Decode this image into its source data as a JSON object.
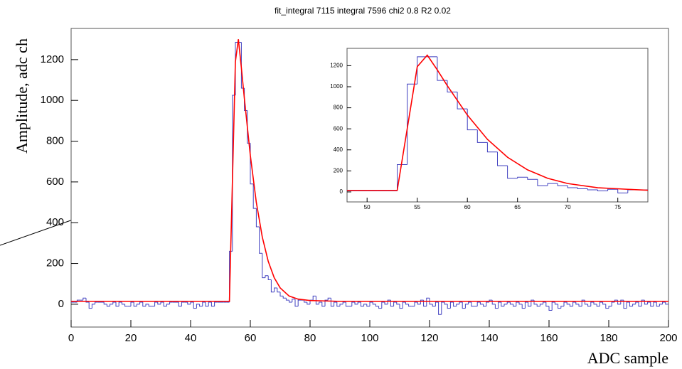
{
  "chart_data": [
    {
      "type": "histogram",
      "title": "fit_integral 7115 integral 7596 chi2 0.8 R2 0.02",
      "x_label": "ADC sample",
      "y_label": "Amplitude, adc ch",
      "bins": [
        0,
        1,
        2,
        3,
        4,
        5,
        6,
        7,
        8,
        9,
        10,
        11,
        12,
        13,
        14,
        15,
        16,
        17,
        18,
        19,
        20,
        21,
        22,
        23,
        24,
        25,
        26,
        27,
        28,
        29,
        30,
        31,
        32,
        33,
        34,
        35,
        36,
        37,
        38,
        39,
        40,
        41,
        42,
        43,
        44,
        45,
        46,
        47,
        48,
        49,
        50,
        51,
        52,
        53,
        54,
        55,
        56,
        57,
        58,
        59,
        60,
        61,
        62,
        63,
        64,
        65,
        66,
        67,
        68,
        69,
        70,
        71,
        72,
        73,
        74,
        75,
        76,
        77,
        78,
        79,
        80,
        81,
        82,
        83,
        84,
        85,
        86,
        87,
        88,
        89,
        90,
        91,
        92,
        93,
        94,
        95,
        96,
        97,
        98,
        99,
        100,
        101,
        102,
        103,
        104,
        105,
        106,
        107,
        108,
        109,
        110,
        111,
        112,
        113,
        114,
        115,
        116,
        117,
        118,
        119,
        120,
        121,
        122,
        123,
        124,
        125,
        126,
        127,
        128,
        129,
        130,
        131,
        132,
        133,
        134,
        135,
        136,
        137,
        138,
        139,
        140,
        141,
        142,
        143,
        144,
        145,
        146,
        147,
        148,
        149,
        150,
        151,
        152,
        153,
        154,
        155,
        156,
        157,
        158,
        159,
        160,
        161,
        162,
        163,
        164,
        165,
        166,
        167,
        168,
        169,
        170,
        171,
        172,
        173,
        174,
        175,
        176,
        177,
        178,
        179,
        180,
        181,
        182,
        183,
        184,
        185,
        186,
        187,
        188,
        189,
        190,
        191,
        192,
        193,
        194,
        195,
        196,
        197,
        198,
        199,
        200
      ],
      "values": [
        10,
        10,
        20,
        20,
        30,
        10,
        -20,
        0,
        10,
        10,
        10,
        0,
        -10,
        0,
        10,
        -10,
        10,
        0,
        -10,
        -10,
        10,
        -10,
        0,
        10,
        -10,
        0,
        -10,
        -10,
        10,
        0,
        10,
        -10,
        0,
        10,
        10,
        10,
        -10,
        10,
        10,
        0,
        10,
        -20,
        0,
        -10,
        10,
        -10,
        10,
        -10,
        10,
        10,
        10,
        10,
        10,
        260,
        1025,
        1285,
        1285,
        1060,
        950,
        790,
        590,
        470,
        380,
        250,
        130,
        140,
        120,
        60,
        80,
        60,
        40,
        30,
        20,
        10,
        25,
        -10,
        20,
        20,
        10,
        0,
        20,
        40,
        0,
        10,
        -10,
        20,
        30,
        -10,
        10,
        -10,
        0,
        10,
        -10,
        -10,
        10,
        0,
        10,
        -10,
        0,
        -10,
        10,
        0,
        -10,
        -20,
        10,
        0,
        20,
        -10,
        10,
        0,
        -20,
        10,
        0,
        -10,
        -10,
        10,
        0,
        20,
        -10,
        30,
        0,
        -10,
        10,
        -50,
        10,
        0,
        -20,
        10,
        -10,
        0,
        10,
        -20,
        0,
        10,
        -10,
        -10,
        10,
        0,
        -10,
        10,
        20,
        0,
        -20,
        10,
        -10,
        0,
        10,
        0,
        -10,
        10,
        0,
        -20,
        10,
        -10,
        20,
        0,
        -10,
        0,
        10,
        -10,
        -30,
        10,
        0,
        -20,
        -10,
        10,
        0,
        -10,
        10,
        0,
        -10,
        20,
        0,
        -10,
        10,
        0,
        -10,
        10,
        0,
        -20,
        -10,
        10,
        20,
        0,
        20,
        -20,
        10,
        -10,
        0,
        10,
        -10,
        20,
        0,
        10,
        -10,
        10,
        -10,
        0,
        10,
        0
      ],
      "color": "#4040c0",
      "fit": {
        "x": [
          0,
          53,
          54,
          55,
          56,
          57,
          58,
          60,
          62,
          64,
          66,
          68,
          70,
          73,
          76,
          80,
          90,
          200
        ],
        "values": [
          14,
          14,
          600,
          1190,
          1300,
          1160,
          1010,
          730,
          500,
          330,
          210,
          130,
          80,
          40,
          25,
          18,
          14,
          14
        ],
        "color": "#ff0000"
      },
      "xlim": [
        0,
        200
      ],
      "ylim": [
        -112,
        1353
      ],
      "xticks": [
        0,
        20,
        40,
        60,
        80,
        100,
        120,
        140,
        160,
        180,
        200
      ],
      "yticks": [
        0,
        200,
        400,
        600,
        800,
        1000,
        1200
      ]
    },
    {
      "type": "histogram",
      "bins": [
        48,
        49,
        50,
        51,
        52,
        53,
        54,
        55,
        56,
        57,
        58,
        59,
        60,
        61,
        62,
        63,
        64,
        65,
        66,
        67,
        68,
        69,
        70,
        71,
        72,
        73,
        74,
        75,
        76,
        77,
        78
      ],
      "values": [
        10,
        10,
        10,
        10,
        10,
        260,
        1025,
        1285,
        1285,
        1060,
        950,
        790,
        590,
        470,
        380,
        250,
        130,
        140,
        120,
        60,
        80,
        60,
        40,
        30,
        20,
        10,
        25,
        -10,
        20,
        20
      ],
      "color": "#4040c0",
      "fit": {
        "x": [
          48,
          53,
          54,
          55,
          56,
          57,
          58,
          60,
          62,
          64,
          66,
          68,
          70,
          73,
          76,
          78
        ],
        "values": [
          14,
          14,
          600,
          1190,
          1300,
          1160,
          1010,
          730,
          500,
          330,
          210,
          130,
          80,
          40,
          25,
          16
        ],
        "color": "#ff0000"
      },
      "xlim": [
        48,
        78
      ],
      "ylim": [
        -95,
        1365
      ],
      "xticks": [
        50,
        55,
        60,
        65,
        70,
        75
      ],
      "yticks": [
        0,
        200,
        400,
        600,
        800,
        1000,
        1200
      ]
    }
  ]
}
